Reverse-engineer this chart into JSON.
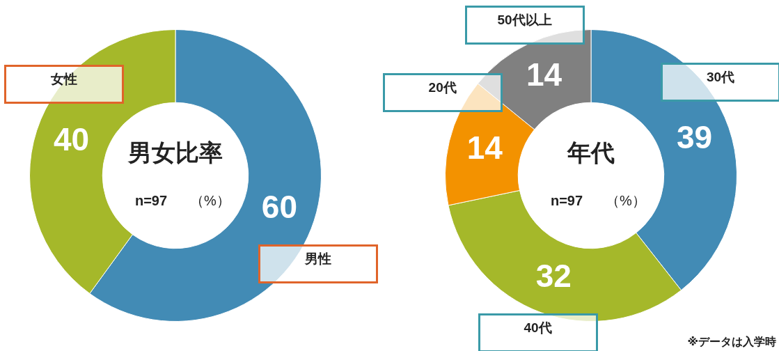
{
  "chart_data": [
    {
      "type": "donut",
      "title": "男女比率",
      "annotations": [
        "n=97",
        "（%）"
      ],
      "categories": [
        "男性",
        "女性"
      ],
      "values": [
        60,
        40
      ],
      "colors": [
        "#428bb5",
        "#a5b82a"
      ],
      "data_labels": true,
      "legend": false
    },
    {
      "type": "donut",
      "title": "年代",
      "annotations": [
        "n=97",
        "（%）",
        "※データは入学時"
      ],
      "categories": [
        "30代",
        "40代",
        "20代",
        "50代以上"
      ],
      "values": [
        39,
        32,
        14,
        14
      ],
      "colors": [
        "#428bb5",
        "#a5b82a",
        "#f39200",
        "#808080"
      ],
      "data_labels": true,
      "legend": false
    }
  ]
}
